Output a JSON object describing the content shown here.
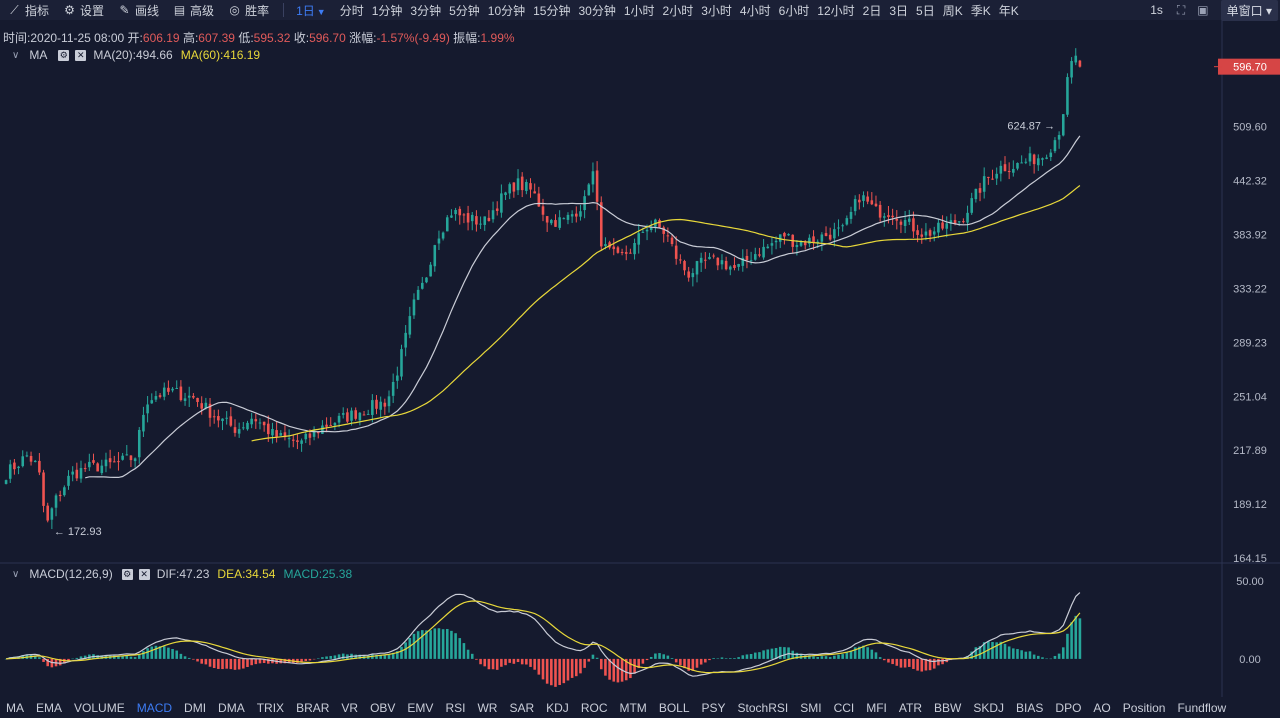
{
  "toolbar": {
    "tools": [
      {
        "icon": "chart-line-icon",
        "label": "指标"
      },
      {
        "icon": "gear-icon",
        "label": "设置"
      },
      {
        "icon": "pencil-icon",
        "label": "画线"
      },
      {
        "icon": "calendar-icon",
        "label": "高级"
      },
      {
        "icon": "target-icon",
        "label": "胜率"
      }
    ],
    "intervals": [
      "1日",
      "分时",
      "1分钟",
      "3分钟",
      "5分钟",
      "10分钟",
      "15分钟",
      "30分钟",
      "1小时",
      "2小时",
      "3小时",
      "4小时",
      "6小时",
      "12小时",
      "2日",
      "3日",
      "5日",
      "周K",
      "季K",
      "年K"
    ],
    "active_interval": "1日",
    "right": {
      "refresh": "1s",
      "window_label": "单窗口"
    }
  },
  "ohlc": {
    "time_label": "时间:",
    "time": "2020-11-25 08:00",
    "open_label": "开:",
    "open": "606.19",
    "high_label": "高:",
    "high": "607.39",
    "low_label": "低:",
    "low": "595.32",
    "close_label": "收:",
    "close": "596.70",
    "change_label": "涨幅:",
    "change": "-1.57%(-9.49)",
    "amp_label": "振幅:",
    "amp": "1.99%"
  },
  "ma_legend": {
    "name": "MA",
    "ma20": "MA(20):494.66",
    "ma60": "MA(60):416.19"
  },
  "macd_legend": {
    "name": "MACD(12,26,9)",
    "dif": "DIF:47.23",
    "dea": "DEA:34.54",
    "macd": "MACD:25.38"
  },
  "colors": {
    "up": "#26a69a",
    "down": "#ef5350",
    "ma20": "#c9ccd6",
    "ma60": "#e8d83a",
    "dif": "#c9ccd6",
    "dea": "#e8d83a",
    "last": "#d64545",
    "bg": "#151a2e"
  },
  "chart_data": [
    {
      "type": "candlestick",
      "panel": "price",
      "y_ticks": [
        596.7,
        509.6,
        442.32,
        383.92,
        333.22,
        289.23,
        251.04,
        217.89,
        189.12,
        164.15
      ],
      "last_price": 596.7,
      "max_label": "624.87",
      "min_label": "172.93",
      "ylim": [
        164.15,
        640
      ],
      "n": 259,
      "waypoints": [
        [
          0,
          205
        ],
        [
          8,
          215
        ],
        [
          12,
          208
        ],
        [
          15,
          178
        ],
        [
          18,
          190
        ],
        [
          24,
          204
        ],
        [
          30,
          208
        ],
        [
          40,
          210
        ],
        [
          48,
          214
        ],
        [
          52,
          248
        ],
        [
          56,
          252
        ],
        [
          62,
          254
        ],
        [
          70,
          250
        ],
        [
          78,
          238
        ],
        [
          86,
          230
        ],
        [
          92,
          238
        ],
        [
          100,
          226
        ],
        [
          110,
          222
        ],
        [
          118,
          232
        ],
        [
          124,
          236
        ],
        [
          130,
          240
        ],
        [
          136,
          244
        ],
        [
          142,
          248
        ],
        [
          146,
          270
        ],
        [
          152,
          320
        ],
        [
          156,
          340
        ],
        [
          160,
          380
        ],
        [
          166,
          408
        ],
        [
          172,
          400
        ],
        [
          178,
          396
        ],
        [
          184,
          420
        ],
        [
          190,
          440
        ],
        [
          196,
          430
        ],
        [
          202,
          398
        ],
        [
          208,
          398
        ],
        [
          212,
          408
        ],
        [
          216,
          420
        ],
        [
          218,
          466
        ],
        [
          222,
          372
        ],
        [
          228,
          360
        ],
        [
          234,
          372
        ],
        [
          238,
          392
        ],
        [
          242,
          394
        ],
        [
          246,
          384
        ],
        [
          250,
          360
        ],
        [
          254,
          346
        ],
        [
          260,
          357
        ],
        [
          266,
          358
        ],
        [
          272,
          350
        ],
        [
          278,
          364
        ],
        [
          284,
          372
        ],
        [
          290,
          384
        ],
        [
          294,
          376
        ],
        [
          300,
          378
        ],
        [
          306,
          384
        ],
        [
          312,
          388
        ],
        [
          318,
          426
        ],
        [
          324,
          408
        ],
        [
          330,
          408
        ],
        [
          336,
          395
        ],
        [
          342,
          384
        ],
        [
          348,
          390
        ],
        [
          356,
          400
        ],
        [
          364,
          440
        ],
        [
          370,
          458
        ],
        [
          376,
          460
        ],
        [
          382,
          468
        ],
        [
          386,
          472
        ],
        [
          390,
          488
        ],
        [
          393,
          512
        ],
        [
          396,
          590
        ],
        [
          398,
          612
        ],
        [
          400,
          596.7
        ]
      ]
    },
    {
      "type": "macd",
      "panel": "macd",
      "y_ticks": [
        50.0,
        0.0
      ],
      "ylim": [
        -20,
        52
      ]
    }
  ],
  "indicators": [
    "MA",
    "EMA",
    "VOLUME",
    "MACD",
    "DMI",
    "DMA",
    "TRIX",
    "BRAR",
    "VR",
    "OBV",
    "EMV",
    "RSI",
    "WR",
    "SAR",
    "KDJ",
    "ROC",
    "MTM",
    "BOLL",
    "PSY",
    "StochRSI",
    "SMI",
    "CCI",
    "MFI",
    "ATR",
    "BBW",
    "SKDJ",
    "BIAS",
    "DPO",
    "AO",
    "Position",
    "Fundflow"
  ],
  "active_indicator": "MACD"
}
